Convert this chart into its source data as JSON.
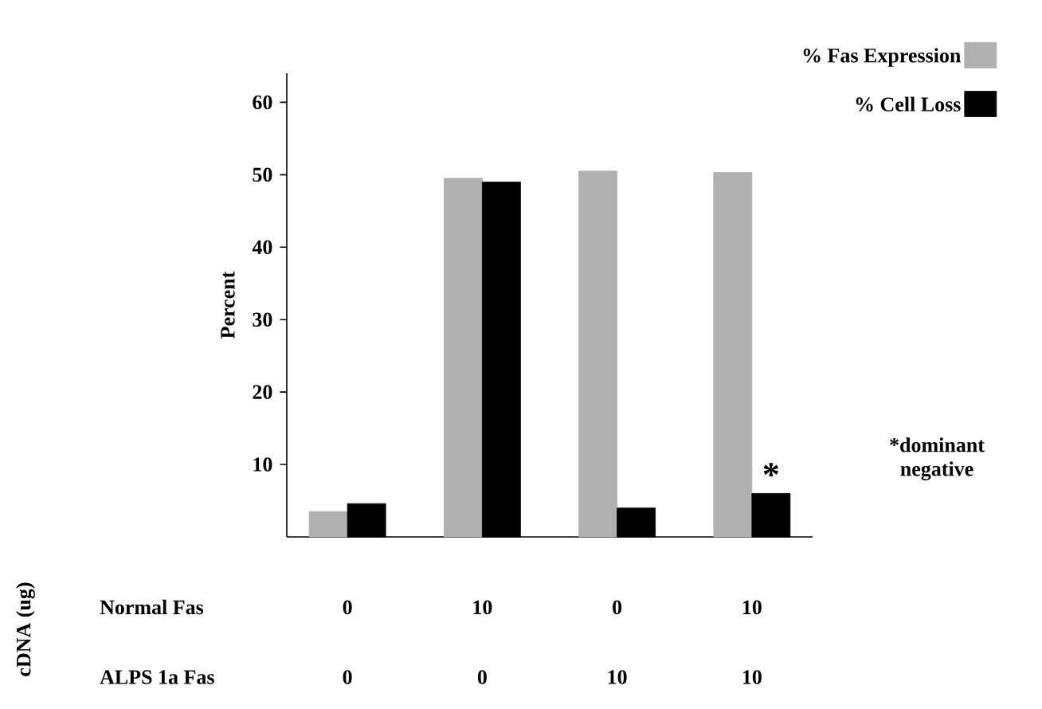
{
  "chart_data": {
    "type": "bar",
    "ylabel": "Percent",
    "categories": [
      "0",
      "10",
      "0",
      "10"
    ],
    "series": [
      {
        "name": "% Fas Expression",
        "color": "#b0b0b0",
        "values": [
          3.5,
          49.5,
          50.5,
          50.3
        ]
      },
      {
        "name": "% Cell Loss",
        "color": "#000000",
        "values": [
          4.6,
          49,
          4,
          6
        ],
        "value_labels": [
          null,
          null,
          null,
          "*"
        ]
      }
    ],
    "ylim": [
      0,
      64
    ],
    "yticks": [
      10,
      20,
      30,
      40,
      50,
      60
    ],
    "legend": "top right",
    "grid": false,
    "annotations": [
      "cDNA (ug)",
      "Normal Fas",
      "ALPS 1a Fas",
      "0",
      "0",
      "10",
      "10",
      "*dominant negative"
    ]
  }
}
